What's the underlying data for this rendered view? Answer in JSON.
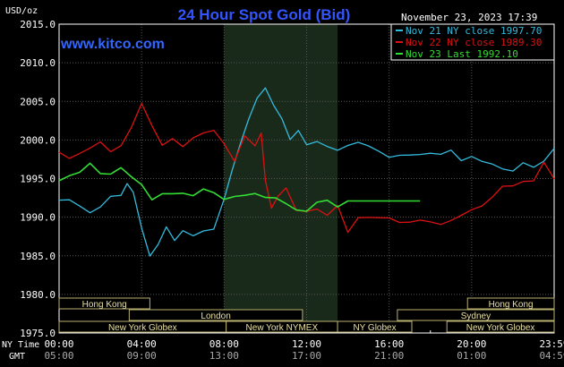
{
  "chart_data": {
    "type": "line",
    "title": "24 Hour Spot Gold (Bid)",
    "source": "www.kitco.com",
    "timestamp": "November 23, 2023 17:39",
    "ylabel": "USD/oz",
    "ylim": [
      1975,
      2015
    ],
    "yticks": [
      "2015.0",
      "2010.0",
      "2005.0",
      "2000.0",
      "1995.0",
      "1990.0",
      "1985.0",
      "1980.0",
      "1975.0"
    ],
    "xlim": [
      0,
      24
    ],
    "x_row_labels": [
      "NY Time",
      "GMT"
    ],
    "xticks_ny": [
      "00:00",
      "04:00",
      "08:00",
      "12:00",
      "16:00",
      "20:00",
      "23:59"
    ],
    "xticks_gmt": [
      "05:00",
      "09:00",
      "13:00",
      "17:00",
      "21:00",
      "01:00",
      "04:59"
    ],
    "highlight_x_range": [
      8,
      13.5
    ],
    "grid": true,
    "legend_position": "top-right",
    "series": [
      {
        "name": "Nov 21 NY close 1997.70",
        "color": "#33bbdd",
        "x": [
          0,
          0.5,
          1,
          1.5,
          2,
          2.5,
          3,
          3.3,
          3.6,
          4,
          4.4,
          4.8,
          5.2,
          5.6,
          6,
          6.5,
          7,
          7.5,
          8,
          8.4,
          8.8,
          9.2,
          9.6,
          10,
          10.4,
          10.8,
          11.2,
          11.6,
          12,
          12.5,
          13,
          13.5,
          14,
          14.5,
          15,
          15.5,
          16,
          16.5,
          17,
          17.5,
          18,
          18.5,
          19,
          19.5,
          20,
          20.5,
          21,
          21.5,
          22,
          22.5,
          23,
          23.5,
          24
        ],
        "values": [
          1992.2,
          1992.0,
          1991.5,
          1990.8,
          1991.2,
          1992.5,
          1993.0,
          1994.5,
          1993.0,
          1988.5,
          1985.2,
          1986.5,
          1988.5,
          1987.0,
          1988.5,
          1987.5,
          1988.0,
          1988.6,
          1992.5,
          1996.0,
          1999.5,
          2003.0,
          2005.5,
          2006.5,
          2004.5,
          2003.0,
          2000.0,
          2001.0,
          1999.5,
          2000.0,
          1999.0,
          1998.5,
          1999.5,
          1999.8,
          1999.0,
          1998.5,
          1998.0,
          1998.0,
          1997.8,
          1998.2,
          1998.5,
          1998.0,
          1998.5,
          1997.5,
          1998.0,
          1997.0,
          1996.8,
          1996.5,
          1996.0,
          1996.8,
          1996.5,
          1997.5,
          1998.8
        ]
      },
      {
        "name": "Nov 22 NY close 1989.30",
        "color": "#dd1111",
        "x": [
          0,
          0.5,
          1,
          1.5,
          2,
          2.5,
          3,
          3.5,
          4,
          4.5,
          5,
          5.5,
          6,
          6.5,
          7,
          7.5,
          8,
          8.5,
          9,
          9.5,
          9.8,
          10,
          10.3,
          10.6,
          11,
          11.5,
          12,
          12.5,
          13,
          13.5,
          14,
          14.5,
          15,
          15.5,
          16,
          16.5,
          17,
          17.5,
          18,
          18.5,
          19,
          19.5,
          20,
          20.5,
          21,
          21.5,
          22,
          22.5,
          23,
          23.5,
          24
        ],
        "values": [
          1998.2,
          1997.5,
          1998.5,
          1999.0,
          1999.5,
          1998.5,
          1999.5,
          2001.5,
          2004.5,
          2002.0,
          1999.5,
          2000.0,
          1999.0,
          2000.5,
          2001.0,
          2001.0,
          1999.5,
          1997.5,
          2000.5,
          1999.0,
          2001.0,
          1995.0,
          1991.0,
          1992.5,
          1994.0,
          1991.0,
          1990.5,
          1991.0,
          1990.5,
          1991.5,
          1987.8,
          1990.0,
          1990.2,
          1989.8,
          1989.7,
          1989.5,
          1989.5,
          1989.4,
          1989.3,
          1989.3,
          1989.6,
          1990.0,
          1991.0,
          1991.7,
          1992.5,
          1993.8,
          1994.2,
          1994.8,
          1994.5,
          1997.0,
          1995.2
        ]
      },
      {
        "name": "Nov 23 Last 1992.10",
        "color": "#33dd33",
        "x": [
          0,
          0.5,
          1,
          1.5,
          2,
          2.5,
          3,
          3.5,
          4,
          4.5,
          5,
          5.5,
          6,
          6.5,
          7,
          7.5,
          8,
          8.5,
          9,
          9.5,
          10,
          10.5,
          11,
          11.5,
          12,
          12.5,
          13,
          13.5,
          14,
          14.5,
          15,
          15.5,
          16,
          16.5,
          17,
          17.5
        ],
        "values": [
          1994.5,
          1995.5,
          1996.0,
          1996.8,
          1995.5,
          1995.8,
          1996.5,
          1995.0,
          1994.2,
          1992.5,
          1993.0,
          1992.8,
          1993.2,
          1993.0,
          1993.5,
          1993.0,
          1992.5,
          1992.8,
          1992.6,
          1993.0,
          1992.8,
          1992.5,
          1991.5,
          1991.0,
          1991.0,
          1991.8,
          1992.0,
          1991.5,
          1992.1,
          1992.1,
          1992.1,
          1992.1,
          1992.1,
          1992.1,
          1992.1,
          1992.1
        ]
      }
    ],
    "session_bars": [
      {
        "label": "Hong Kong",
        "start": 0,
        "end": 4.4,
        "row": 0
      },
      {
        "label": "Hong Kong",
        "start": 19.8,
        "end": 24,
        "row": 0
      },
      {
        "label": "London",
        "start": 3.4,
        "end": 11.8,
        "row": 1
      },
      {
        "label": "Sydney",
        "start": 16.4,
        "end": 24,
        "row": 1
      },
      {
        "label": "New York Globex",
        "start": 0,
        "end": 8.1,
        "row": 2
      },
      {
        "label": "New York NYMEX",
        "start": 8.1,
        "end": 13.5,
        "row": 2
      },
      {
        "label": "NY Globex",
        "start": 13.5,
        "end": 17.1,
        "row": 2
      },
      {
        "label": "New York Globex",
        "start": 18.8,
        "end": 24,
        "row": 2
      }
    ]
  }
}
